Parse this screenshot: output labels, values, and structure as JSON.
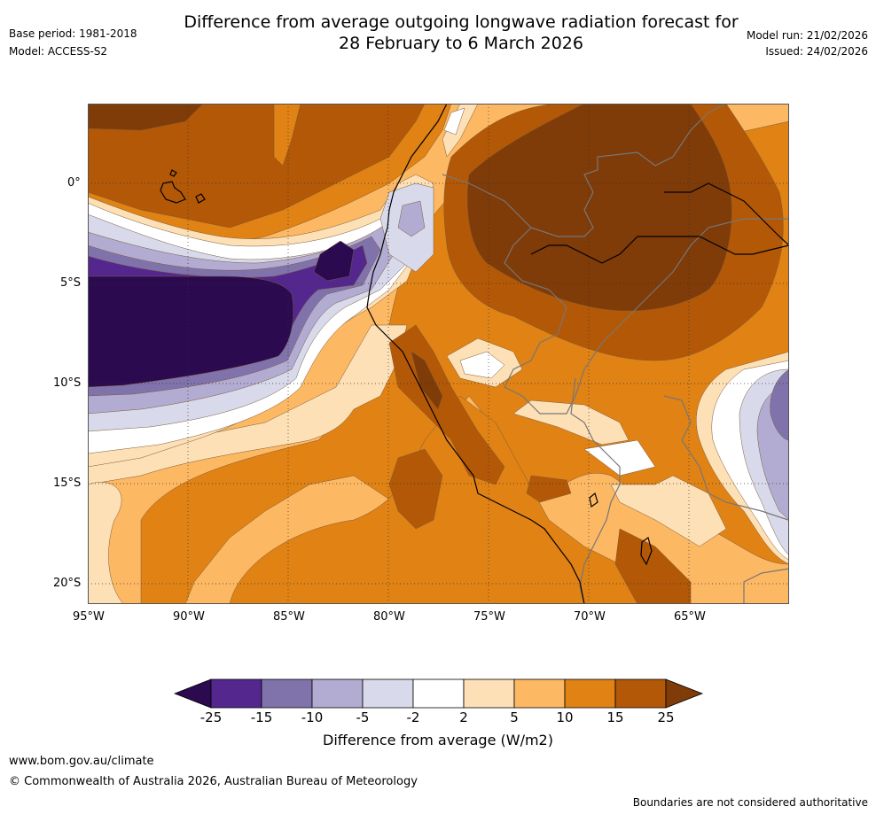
{
  "header": {
    "base_period": "Base period: 1981-2018",
    "model": "Model: ACCESS-S2",
    "title_line1": "Difference from average outgoing longwave radiation forecast for",
    "title_line2": "28 February to 6 March 2026",
    "model_run": "Model run: 21/02/2026",
    "issued": "Issued: 24/02/2026"
  },
  "map": {
    "lat_labels": [
      "0°",
      "5°S",
      "10°S",
      "15°S",
      "20°S"
    ],
    "lon_labels": [
      "95°W",
      "90°W",
      "85°W",
      "80°W",
      "75°W",
      "70°W",
      "65°W"
    ]
  },
  "colorbar": {
    "ticks": [
      "-25",
      "-15",
      "-10",
      "-5",
      "-2",
      "2",
      "5",
      "10",
      "15",
      "25"
    ],
    "colors": [
      "#2b0a50",
      "#54278f",
      "#8073ac",
      "#b2abd2",
      "#d8daeb",
      "#ffffff",
      "#fee0b6",
      "#fdb863",
      "#e08214",
      "#b35806",
      "#7f3b08"
    ],
    "label": "Difference from average (W/m2)"
  },
  "footer": {
    "website": "www.bom.gov.au/climate",
    "copyright": "© Commonwealth of Australia 2026, Australian Bureau of Meteorology",
    "disclaimer": "Boundaries are not considered authoritative"
  }
}
